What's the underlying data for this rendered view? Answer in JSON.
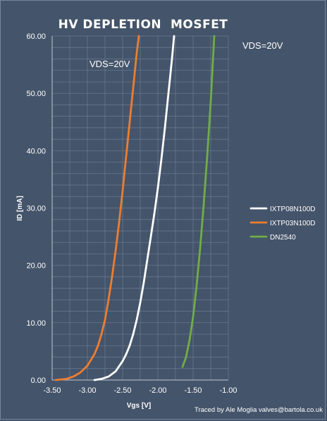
{
  "chart_data": {
    "type": "line",
    "title": "HV DEPLETION  MOSFET",
    "xlabel": "Vgs [V]",
    "ylabel": "ID [mA]",
    "xlim": [
      -3.5,
      -1.0
    ],
    "ylim": [
      0,
      60
    ],
    "x_ticks": [
      "-3.50",
      "-3.00",
      "-2.50",
      "-2.00",
      "-1.50",
      "-1.00"
    ],
    "y_ticks": [
      "0.00",
      "10.00",
      "20.00",
      "30.00",
      "40.00",
      "50.00",
      "60.00"
    ],
    "grid": true,
    "legend_position": "right",
    "annotations": [
      "VDS=20V",
      "VDS=20V"
    ],
    "credit": "Traced by Ale Moglia valves@bartola.co.uk",
    "colors": {
      "background": "#44546A",
      "grid": "#6B7B90",
      "IXTP08N100D": "#FFFFFF",
      "IXTP03N100D": "#ED7D31",
      "DN2540": "#70AD47"
    },
    "series": [
      {
        "name": "IXTP08N100D",
        "color": "#FFFFFF",
        "points": [
          [
            -2.9,
            0.0
          ],
          [
            -2.8,
            0.2
          ],
          [
            -2.7,
            0.6
          ],
          [
            -2.6,
            1.5
          ],
          [
            -2.5,
            3.3
          ],
          [
            -2.45,
            4.5
          ],
          [
            -2.4,
            6.0
          ],
          [
            -2.35,
            8.0
          ],
          [
            -2.3,
            10.5
          ],
          [
            -2.25,
            13.5
          ],
          [
            -2.2,
            17.0
          ],
          [
            -2.15,
            21.0
          ],
          [
            -2.1,
            25.0
          ],
          [
            -2.05,
            29.0
          ],
          [
            -2.0,
            33.5
          ],
          [
            -1.95,
            38.5
          ],
          [
            -1.9,
            44.0
          ],
          [
            -1.85,
            50.0
          ],
          [
            -1.8,
            56.0
          ],
          [
            -1.77,
            60.0
          ]
        ]
      },
      {
        "name": "IXTP03N100D",
        "color": "#ED7D31",
        "points": [
          [
            -3.45,
            0.0
          ],
          [
            -3.3,
            0.2
          ],
          [
            -3.2,
            0.6
          ],
          [
            -3.1,
            1.3
          ],
          [
            -3.0,
            2.5
          ],
          [
            -2.9,
            4.5
          ],
          [
            -2.85,
            6.0
          ],
          [
            -2.8,
            8.0
          ],
          [
            -2.75,
            10.5
          ],
          [
            -2.7,
            14.0
          ],
          [
            -2.65,
            18.0
          ],
          [
            -2.6,
            22.5
          ],
          [
            -2.55,
            27.5
          ],
          [
            -2.5,
            33.0
          ],
          [
            -2.45,
            39.0
          ],
          [
            -2.4,
            45.0
          ],
          [
            -2.35,
            51.0
          ],
          [
            -2.3,
            57.0
          ],
          [
            -2.27,
            60.0
          ]
        ]
      },
      {
        "name": "DN2540",
        "color": "#70AD47",
        "points": [
          [
            -1.65,
            2.3
          ],
          [
            -1.6,
            4.0
          ],
          [
            -1.55,
            7.0
          ],
          [
            -1.5,
            11.0
          ],
          [
            -1.45,
            16.5
          ],
          [
            -1.4,
            23.0
          ],
          [
            -1.35,
            30.5
          ],
          [
            -1.3,
            39.0
          ],
          [
            -1.25,
            48.5
          ],
          [
            -1.2,
            60.0
          ]
        ]
      }
    ]
  }
}
